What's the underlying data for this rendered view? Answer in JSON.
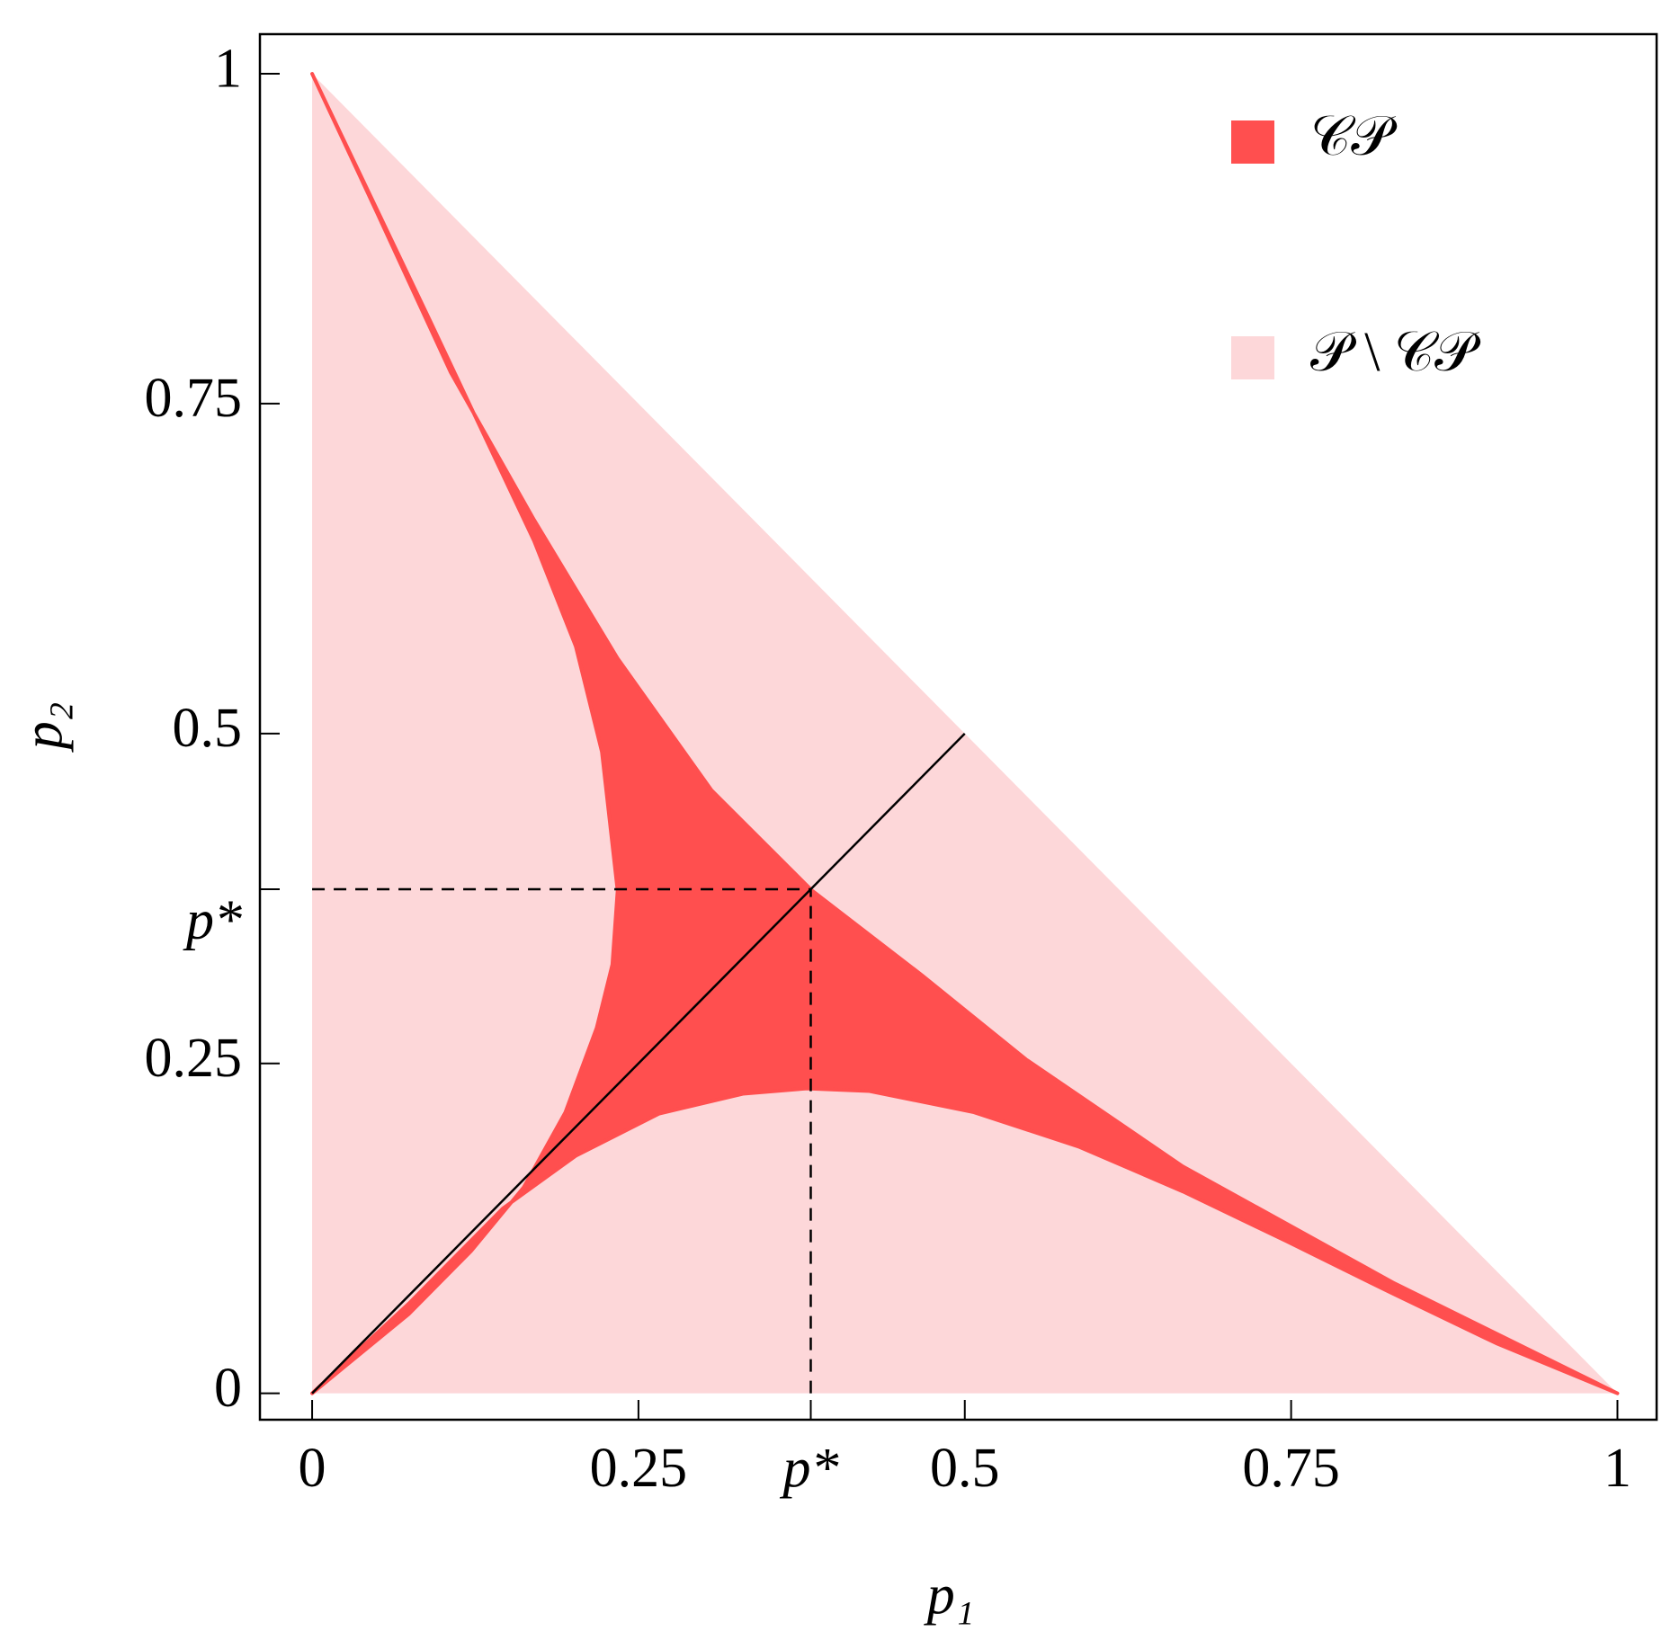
{
  "chart_data": {
    "type": "region",
    "xlabel": "p₁",
    "ylabel": "p₂",
    "xlim": [
      -0.04,
      1.03
    ],
    "ylim": [
      -0.02,
      1.03
    ],
    "xticks": [
      0,
      0.25,
      {
        "value": 0.382,
        "label": "p*"
      },
      0.5,
      0.75,
      1
    ],
    "yticks": [
      0,
      0.25,
      {
        "value": 0.382,
        "label": "p*"
      },
      0.5,
      0.75,
      1
    ],
    "legend": "upper right",
    "series": [
      {
        "name": "𝒞𝒫",
        "color": "#ff4f4f",
        "x": [
          0,
          0.0898,
          0.17,
          0.202,
          0.222,
          0.234,
          0.23,
          0.218,
          0.194,
          0.162,
          0.122,
          0.074,
          0,
          0.074,
          0.146,
          0.202,
          0.266,
          0.33,
          0.379,
          0.427,
          0.507,
          0.587,
          0.667,
          0.747,
          0.827,
          0.907,
          1,
          0.828,
          0.667,
          0.547,
          0.467,
          0.383,
          0.306,
          0.234,
          0.17,
          0.106,
          0.05
        ],
        "y": [
          1,
          0.814,
          0.646,
          0.566,
          0.486,
          0.381,
          0.325,
          0.277,
          0.213,
          0.156,
          0.108,
          0.06,
          0,
          0.068,
          0.14,
          0.18,
          0.212,
          0.227,
          0.231,
          0.229,
          0.213,
          0.187,
          0.153,
          0.115,
          0.076,
          0.038,
          0,
          0.084,
          0.172,
          0.253,
          0.317,
          0.381,
          0.457,
          0.557,
          0.662,
          0.774,
          0.894
        ]
      },
      {
        "name": "𝒫 \\ 𝒞𝒫",
        "color": "#fdd7d9",
        "x": [
          0,
          1,
          0
        ],
        "y": [
          0,
          0,
          1
        ]
      }
    ],
    "lines": [
      {
        "x": [
          0,
          0.5
        ],
        "y": [
          0,
          0.5
        ],
        "color": "#000000",
        "style": "solid"
      },
      {
        "x": [
          0,
          0.382
        ],
        "y": [
          0.382,
          0.382
        ],
        "color": "#000000",
        "style": "dashed"
      },
      {
        "x": [
          0.382,
          0.382
        ],
        "y": [
          0,
          0.382
        ],
        "color": "#000000",
        "style": "dashed"
      }
    ]
  }
}
